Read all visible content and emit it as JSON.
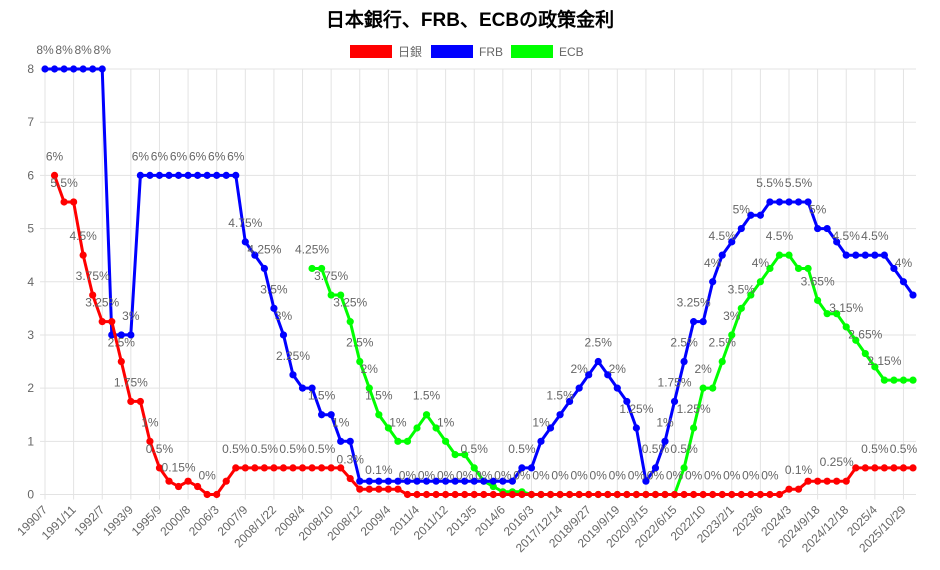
{
  "chart_data": {
    "type": "line",
    "title": "日本銀行、FRB、ECBの政策金利",
    "legend_position": "top",
    "grid": true,
    "ylim": [
      0,
      8
    ],
    "yticks": [
      0,
      1,
      2,
      3,
      4,
      5,
      6,
      7,
      8
    ],
    "x_tick_labels": [
      "1990/7",
      "1991/11",
      "1992/7",
      "1993/9",
      "1995/9",
      "2000/8",
      "2006/3",
      "2007/9",
      "2008/1/22",
      "2008/4",
      "2008/10",
      "2008/12",
      "2009/4",
      "2011/4",
      "2011/12",
      "2013/5",
      "2014/6",
      "2016/3",
      "2017/12/14",
      "2018/9/27",
      "2019/9/19",
      "2020/3/15",
      "2022/6/15",
      "2022/10",
      "2023/2/1",
      "2023/6",
      "2024/3",
      "2024/9/18",
      "2024/12/18",
      "2025/4",
      "2025/10/29"
    ],
    "value_suffix": "%",
    "series": [
      {
        "name": "日銀",
        "color": "#ff0000",
        "values": [
          null,
          6,
          5.5,
          5.5,
          4.5,
          3.75,
          3.25,
          3.25,
          2.5,
          1.75,
          1.75,
          1,
          0.5,
          0.25,
          0.15,
          0.25,
          0.15,
          0,
          0,
          0.25,
          0.5,
          0.5,
          0.5,
          0.5,
          0.5,
          0.5,
          0.5,
          0.5,
          0.5,
          0.5,
          0.5,
          0.5,
          0.3,
          0.1,
          0.1,
          0.1,
          0.1,
          0.1,
          0,
          0,
          0,
          0,
          0,
          0,
          0,
          0,
          0,
          0,
          0,
          0,
          0,
          0,
          0,
          0,
          0,
          0,
          0,
          0,
          0,
          0,
          0,
          0,
          0,
          0,
          0,
          0,
          0,
          0,
          0,
          0,
          0,
          0,
          0,
          0,
          0,
          0,
          0,
          0,
          0.1,
          0.1,
          0.25,
          0.25,
          0.25,
          0.25,
          0.25,
          0.5,
          0.5,
          0.5,
          0.5,
          0.5,
          0.5,
          0.5
        ]
      },
      {
        "name": "FRB",
        "color": "#0000ff",
        "values": [
          8,
          8,
          8,
          8,
          8,
          8,
          8,
          3,
          3,
          3,
          6,
          6,
          6,
          6,
          6,
          6,
          6,
          6,
          6,
          6,
          6,
          4.75,
          4.5,
          4.25,
          3.5,
          3,
          2.25,
          2,
          2,
          1.5,
          1.5,
          1,
          1,
          0.25,
          0.25,
          0.25,
          0.25,
          0.25,
          0.25,
          0.25,
          0.25,
          0.25,
          0.25,
          0.25,
          0.25,
          0.25,
          0.25,
          0.25,
          0.25,
          0.25,
          0.5,
          0.5,
          1,
          1.25,
          1.5,
          1.75,
          2,
          2.25,
          2.5,
          2.25,
          2,
          1.75,
          1.25,
          0.25,
          0.5,
          1,
          1.75,
          2.5,
          3.25,
          3.25,
          4,
          4.5,
          4.75,
          5,
          5.25,
          5.25,
          5.5,
          5.5,
          5.5,
          5.5,
          5.5,
          5,
          5,
          4.75,
          4.5,
          4.5,
          4.5,
          4.5,
          4.5,
          4.25,
          4,
          3.75
        ]
      },
      {
        "name": "ECB",
        "color": "#00ff00",
        "values": [
          null,
          null,
          null,
          null,
          null,
          null,
          null,
          null,
          null,
          null,
          null,
          null,
          null,
          null,
          null,
          null,
          null,
          null,
          null,
          null,
          null,
          null,
          null,
          null,
          null,
          null,
          null,
          null,
          4.25,
          4.25,
          3.75,
          3.75,
          3.25,
          2.5,
          2,
          1.5,
          1.25,
          1,
          1,
          1.25,
          1.5,
          1.25,
          1,
          0.75,
          0.75,
          0.5,
          0.25,
          0.15,
          0.05,
          0.05,
          0.05,
          0,
          0,
          0,
          0,
          0,
          0,
          0,
          0,
          0,
          0,
          0,
          0,
          0,
          0,
          0,
          0,
          0.5,
          1.25,
          2,
          2,
          2.5,
          3,
          3.5,
          3.75,
          4,
          4.25,
          4.5,
          4.5,
          4.25,
          4.25,
          3.65,
          3.4,
          3.4,
          3.15,
          2.9,
          2.65,
          2.4,
          2.15,
          2.15,
          2.15,
          2.15
        ]
      }
    ]
  }
}
